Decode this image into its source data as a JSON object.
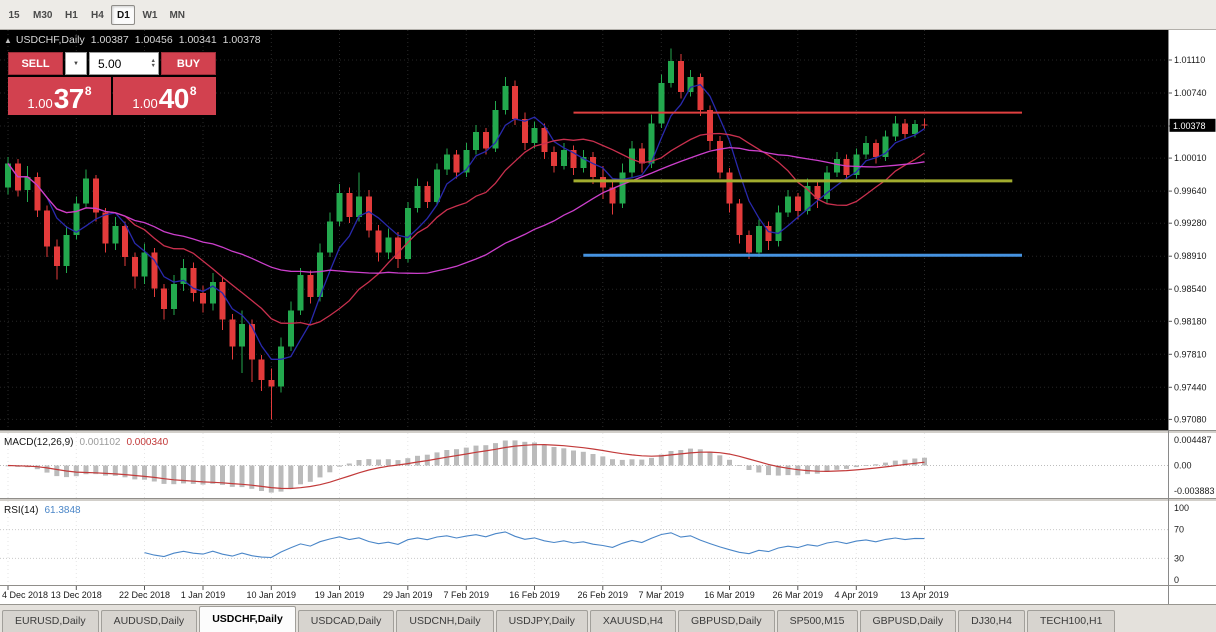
{
  "toolbar": {
    "timeframes": [
      "15",
      "M30",
      "H1",
      "H4",
      "D1",
      "W1",
      "MN"
    ],
    "selected": "D1"
  },
  "chart": {
    "title": {
      "symbol": "USDCHF,Daily",
      "open": "1.00387",
      "high": "1.00456",
      "low": "1.00341",
      "close": "1.00378"
    },
    "price_scale": [
      "1.01110",
      "1.00740",
      "1.00370",
      "1.00010",
      "0.99640",
      "0.99280",
      "0.98910",
      "0.98540",
      "0.98180",
      "0.97810",
      "0.97440",
      "0.97080"
    ],
    "current_price_label": "1.00378",
    "date_ticks": [
      {
        "label": "4 Dec 2018",
        "i": 0
      },
      {
        "label": "13 Dec 2018",
        "i": 7
      },
      {
        "label": "22 Dec 2018",
        "i": 14
      },
      {
        "label": "1 Jan 2019",
        "i": 20
      },
      {
        "label": "10 Jan 2019",
        "i": 27
      },
      {
        "label": "19 Jan 2019",
        "i": 34
      },
      {
        "label": "29 Jan 2019",
        "i": 41
      },
      {
        "label": "7 Feb 2019",
        "i": 47
      },
      {
        "label": "16 Feb 2019",
        "i": 54
      },
      {
        "label": "26 Feb 2019",
        "i": 61
      },
      {
        "label": "7 Mar 2019",
        "i": 67
      },
      {
        "label": "16 Mar 2019",
        "i": 74
      },
      {
        "label": "26 Mar 2019",
        "i": 81
      },
      {
        "label": "4 Apr 2019",
        "i": 87
      },
      {
        "label": "13 Apr 2019",
        "i": 94
      }
    ]
  },
  "trade_panel": {
    "sell_label": "SELL",
    "buy_label": "BUY",
    "volume": "5.00",
    "sell_price": {
      "prefix": "1.00",
      "big": "37",
      "sup": "8"
    },
    "buy_price": {
      "prefix": "1.00",
      "big": "40",
      "sup": "8"
    }
  },
  "icons": {
    "one_click_toggle": "▲",
    "dropdown_caret": "▼",
    "spin_up": "▲",
    "spin_down": "▼"
  },
  "macd": {
    "name": "MACD(12,26,9)",
    "value_main": "0.001102",
    "value_signal": "0.000340",
    "scale_top": "0.004487",
    "scale_mid": "0.00",
    "scale_bottom": "-0.003883",
    "params": {
      "fast": 12,
      "slow": 26,
      "signal": 9
    }
  },
  "rsi": {
    "name": "RSI(14)",
    "value": "61.3848",
    "scale": [
      "100",
      "70",
      "30",
      "0"
    ],
    "levels": [
      70,
      30
    ],
    "params": {
      "period": 14
    }
  },
  "tabs": {
    "items": [
      "EURUSD,Daily",
      "AUDUSD,Daily",
      "USDCHF,Daily",
      "USDCAD,Daily",
      "USDCNH,Daily",
      "USDJPY,Daily",
      "XAUUSD,H4",
      "GBPUSD,Daily",
      "SP500,M15",
      "GBPUSD,Daily",
      "DJ30,H4",
      "TECH100,H1"
    ],
    "selected_index": 2
  },
  "chart_data": {
    "type": "candlestick",
    "symbol": "USDCHF",
    "timeframe": "Daily",
    "candles": [
      [
        0.9968,
        1.0002,
        0.996,
        0.9995
      ],
      [
        0.9995,
        1.0,
        0.9958,
        0.9965
      ],
      [
        0.9965,
        0.9992,
        0.9952,
        0.998
      ],
      [
        0.998,
        0.9985,
        0.9935,
        0.9942
      ],
      [
        0.9942,
        0.9948,
        0.989,
        0.9902
      ],
      [
        0.9902,
        0.991,
        0.9865,
        0.988
      ],
      [
        0.988,
        0.9925,
        0.9872,
        0.9915
      ],
      [
        0.9915,
        0.9958,
        0.991,
        0.995
      ],
      [
        0.995,
        0.9988,
        0.9945,
        0.9978
      ],
      [
        0.9978,
        0.9982,
        0.993,
        0.994
      ],
      [
        0.994,
        0.9945,
        0.9895,
        0.9905
      ],
      [
        0.9905,
        0.9935,
        0.9898,
        0.9925
      ],
      [
        0.9925,
        0.993,
        0.988,
        0.989
      ],
      [
        0.989,
        0.9895,
        0.9855,
        0.9868
      ],
      [
        0.9868,
        0.9905,
        0.986,
        0.9895
      ],
      [
        0.9895,
        0.99,
        0.9845,
        0.9855
      ],
      [
        0.9855,
        0.986,
        0.982,
        0.9832
      ],
      [
        0.9832,
        0.987,
        0.9825,
        0.986
      ],
      [
        0.986,
        0.9888,
        0.9852,
        0.9878
      ],
      [
        0.9878,
        0.9884,
        0.984,
        0.985
      ],
      [
        0.985,
        0.9858,
        0.9828,
        0.9838
      ],
      [
        0.9838,
        0.9872,
        0.983,
        0.9862
      ],
      [
        0.9862,
        0.9868,
        0.9808,
        0.982
      ],
      [
        0.982,
        0.9826,
        0.9775,
        0.979
      ],
      [
        0.979,
        0.983,
        0.976,
        0.9815
      ],
      [
        0.9815,
        0.982,
        0.975,
        0.9775
      ],
      [
        0.9775,
        0.978,
        0.974,
        0.9752
      ],
      [
        0.9752,
        0.9765,
        0.9708,
        0.9745
      ],
      [
        0.9745,
        0.98,
        0.9738,
        0.979
      ],
      [
        0.979,
        0.984,
        0.9785,
        0.983
      ],
      [
        0.983,
        0.9878,
        0.9825,
        0.987
      ],
      [
        0.987,
        0.9875,
        0.9838,
        0.9845
      ],
      [
        0.9845,
        0.9905,
        0.984,
        0.9895
      ],
      [
        0.9895,
        0.994,
        0.989,
        0.993
      ],
      [
        0.993,
        0.9972,
        0.9925,
        0.9962
      ],
      [
        0.9962,
        0.9968,
        0.9928,
        0.9935
      ],
      [
        0.9935,
        0.9985,
        0.993,
        0.9958
      ],
      [
        0.9958,
        0.9965,
        0.9912,
        0.992
      ],
      [
        0.992,
        0.9926,
        0.9885,
        0.9895
      ],
      [
        0.9895,
        0.9922,
        0.9888,
        0.9912
      ],
      [
        0.9912,
        0.9918,
        0.9878,
        0.9888
      ],
      [
        0.9888,
        0.9952,
        0.9884,
        0.9945
      ],
      [
        0.9945,
        0.9978,
        0.994,
        0.997
      ],
      [
        0.997,
        0.9975,
        0.9945,
        0.9952
      ],
      [
        0.9952,
        0.9995,
        0.9948,
        0.9988
      ],
      [
        0.9988,
        1.0012,
        0.9982,
        1.0005
      ],
      [
        1.0005,
        1.001,
        0.9978,
        0.9985
      ],
      [
        0.9985,
        1.0018,
        0.998,
        1.001
      ],
      [
        1.001,
        1.0038,
        1.0005,
        1.003
      ],
      [
        1.003,
        1.0035,
        1.0005,
        1.0012
      ],
      [
        1.0012,
        1.0065,
        1.0008,
        1.0055
      ],
      [
        1.0055,
        1.0092,
        1.005,
        1.0082
      ],
      [
        1.0082,
        1.0088,
        1.0038,
        1.0045
      ],
      [
        1.0045,
        1.0052,
        1.001,
        1.0018
      ],
      [
        1.0018,
        1.0042,
        1.0012,
        1.0035
      ],
      [
        1.0035,
        1.004,
        1.0,
        1.0008
      ],
      [
        1.0008,
        1.0014,
        0.9985,
        0.9992
      ],
      [
        0.9992,
        1.0018,
        0.9988,
        1.001
      ],
      [
        1.001,
        1.0015,
        0.9982,
        0.999
      ],
      [
        0.999,
        1.001,
        0.9985,
        1.0002
      ],
      [
        1.0002,
        1.0008,
        0.9972,
        0.998
      ],
      [
        0.998,
        0.9992,
        0.9955,
        0.9968
      ],
      [
        0.9968,
        0.9975,
        0.9938,
        0.995
      ],
      [
        0.995,
        0.9995,
        0.9945,
        0.9985
      ],
      [
        0.9985,
        1.002,
        0.998,
        1.0012
      ],
      [
        1.0012,
        1.0018,
        0.9985,
        0.9995
      ],
      [
        0.9995,
        1.005,
        0.999,
        1.004
      ],
      [
        1.004,
        1.0095,
        1.0035,
        1.0085
      ],
      [
        1.0085,
        1.0124,
        1.008,
        1.011
      ],
      [
        1.011,
        1.0118,
        1.0068,
        1.0075
      ],
      [
        1.0075,
        1.01,
        1.007,
        1.0092
      ],
      [
        1.0092,
        1.0096,
        1.0048,
        1.0055
      ],
      [
        1.0055,
        1.006,
        1.001,
        1.002
      ],
      [
        1.002,
        1.0026,
        0.9978,
        0.9985
      ],
      [
        0.9985,
        0.999,
        0.994,
        0.995
      ],
      [
        0.995,
        0.9955,
        0.9905,
        0.9915
      ],
      [
        0.9915,
        0.992,
        0.9888,
        0.9895
      ],
      [
        0.9895,
        0.9932,
        0.989,
        0.9925
      ],
      [
        0.9925,
        0.993,
        0.9898,
        0.9908
      ],
      [
        0.9908,
        0.9948,
        0.9902,
        0.994
      ],
      [
        0.994,
        0.9965,
        0.9935,
        0.9958
      ],
      [
        0.9958,
        0.9962,
        0.9932,
        0.9942
      ],
      [
        0.9942,
        0.9978,
        0.9938,
        0.997
      ],
      [
        0.997,
        0.9975,
        0.9945,
        0.9955
      ],
      [
        0.9955,
        0.9992,
        0.995,
        0.9985
      ],
      [
        0.9985,
        1.0008,
        0.998,
        1.0
      ],
      [
        1.0,
        1.0005,
        0.9975,
        0.9982
      ],
      [
        0.9982,
        1.0012,
        0.9978,
        1.0005
      ],
      [
        1.0005,
        1.0026,
        1.0,
        1.0018
      ],
      [
        1.0018,
        1.0022,
        0.9995,
        1.0002
      ],
      [
        1.0002,
        1.0032,
        0.9998,
        1.0025
      ],
      [
        1.0025,
        1.0048,
        1.002,
        1.004
      ],
      [
        1.004,
        1.0045,
        1.0022,
        1.0028
      ],
      [
        1.0028,
        1.0044,
        1.0024,
        1.0039
      ],
      [
        1.00387,
        1.00456,
        1.00341,
        1.00378
      ]
    ],
    "moving_averages": [
      {
        "period": 5,
        "color": "#2929ad"
      },
      {
        "period": 13,
        "color": "#c9304e"
      },
      {
        "period": 34,
        "color": "#cc3fcc"
      }
    ],
    "hlines": [
      {
        "price": 1.0052,
        "color": "#e04040",
        "width": 2,
        "from_index": 58,
        "to_index": 104
      },
      {
        "price": 0.99755,
        "color": "#a2ac2e",
        "width": 3,
        "from_index": 58,
        "to_index": 103
      },
      {
        "price": 0.9892,
        "color": "#4693e0",
        "width": 3,
        "from_index": 59,
        "to_index": 104
      }
    ],
    "colors": {
      "up": "#23a94e",
      "down": "#e33b3b",
      "background": "#000000",
      "macd_hist": "#bbbbbb",
      "macd_signal": "#c23a3a",
      "rsi": "#4a86c8"
    }
  }
}
